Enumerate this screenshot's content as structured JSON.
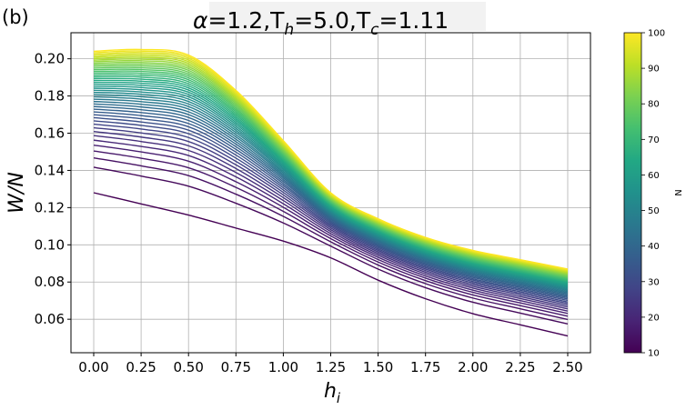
{
  "panel_label": "(b)",
  "title": {
    "alpha_symbol": "α",
    "alpha_value": "=1.2,T",
    "h_sub": "h",
    "th_value": "=5.0,T",
    "c_sub": "c",
    "tc_value": "=1.11"
  },
  "colormap": [
    "#440154",
    "#482475",
    "#414487",
    "#355f8d",
    "#2a788e",
    "#21918c",
    "#22a884",
    "#44bf70",
    "#7ad151",
    "#bddf26",
    "#fde725"
  ],
  "chart_data": {
    "type": "line",
    "xlabel": {
      "main": "h",
      "sub": "i"
    },
    "ylabel": "W/N",
    "xlim": [
      -0.12,
      2.62
    ],
    "ylim": [
      0.042,
      0.214
    ],
    "xticks": [
      "0.00",
      "0.25",
      "0.50",
      "0.75",
      "1.00",
      "1.25",
      "1.50",
      "1.75",
      "2.00",
      "2.25",
      "2.50"
    ],
    "yticks": [
      "0.06",
      "0.08",
      "0.10",
      "0.12",
      "0.14",
      "0.16",
      "0.18",
      "0.20"
    ],
    "grid": true,
    "colorbar": {
      "label": "N",
      "range": [
        10,
        100
      ],
      "ticks": [
        "10",
        "20",
        "30",
        "40",
        "50",
        "60",
        "70",
        "80",
        "90",
        "100"
      ]
    },
    "series_N_range": [
      10,
      100
    ],
    "series_N_step": 2,
    "x": [
      0.0,
      0.25,
      0.5,
      0.75,
      1.0,
      1.25,
      1.5,
      1.75,
      2.0,
      2.25,
      2.5
    ],
    "reference_curves": [
      {
        "N": 10,
        "values": [
          0.128,
          0.122,
          0.116,
          0.109,
          0.102,
          0.093,
          0.081,
          0.071,
          0.063,
          0.057,
          0.051
        ]
      },
      {
        "N": 100,
        "values": [
          0.204,
          0.205,
          0.202,
          0.183,
          0.156,
          0.128,
          0.114,
          0.104,
          0.097,
          0.092,
          0.087
        ]
      }
    ]
  }
}
